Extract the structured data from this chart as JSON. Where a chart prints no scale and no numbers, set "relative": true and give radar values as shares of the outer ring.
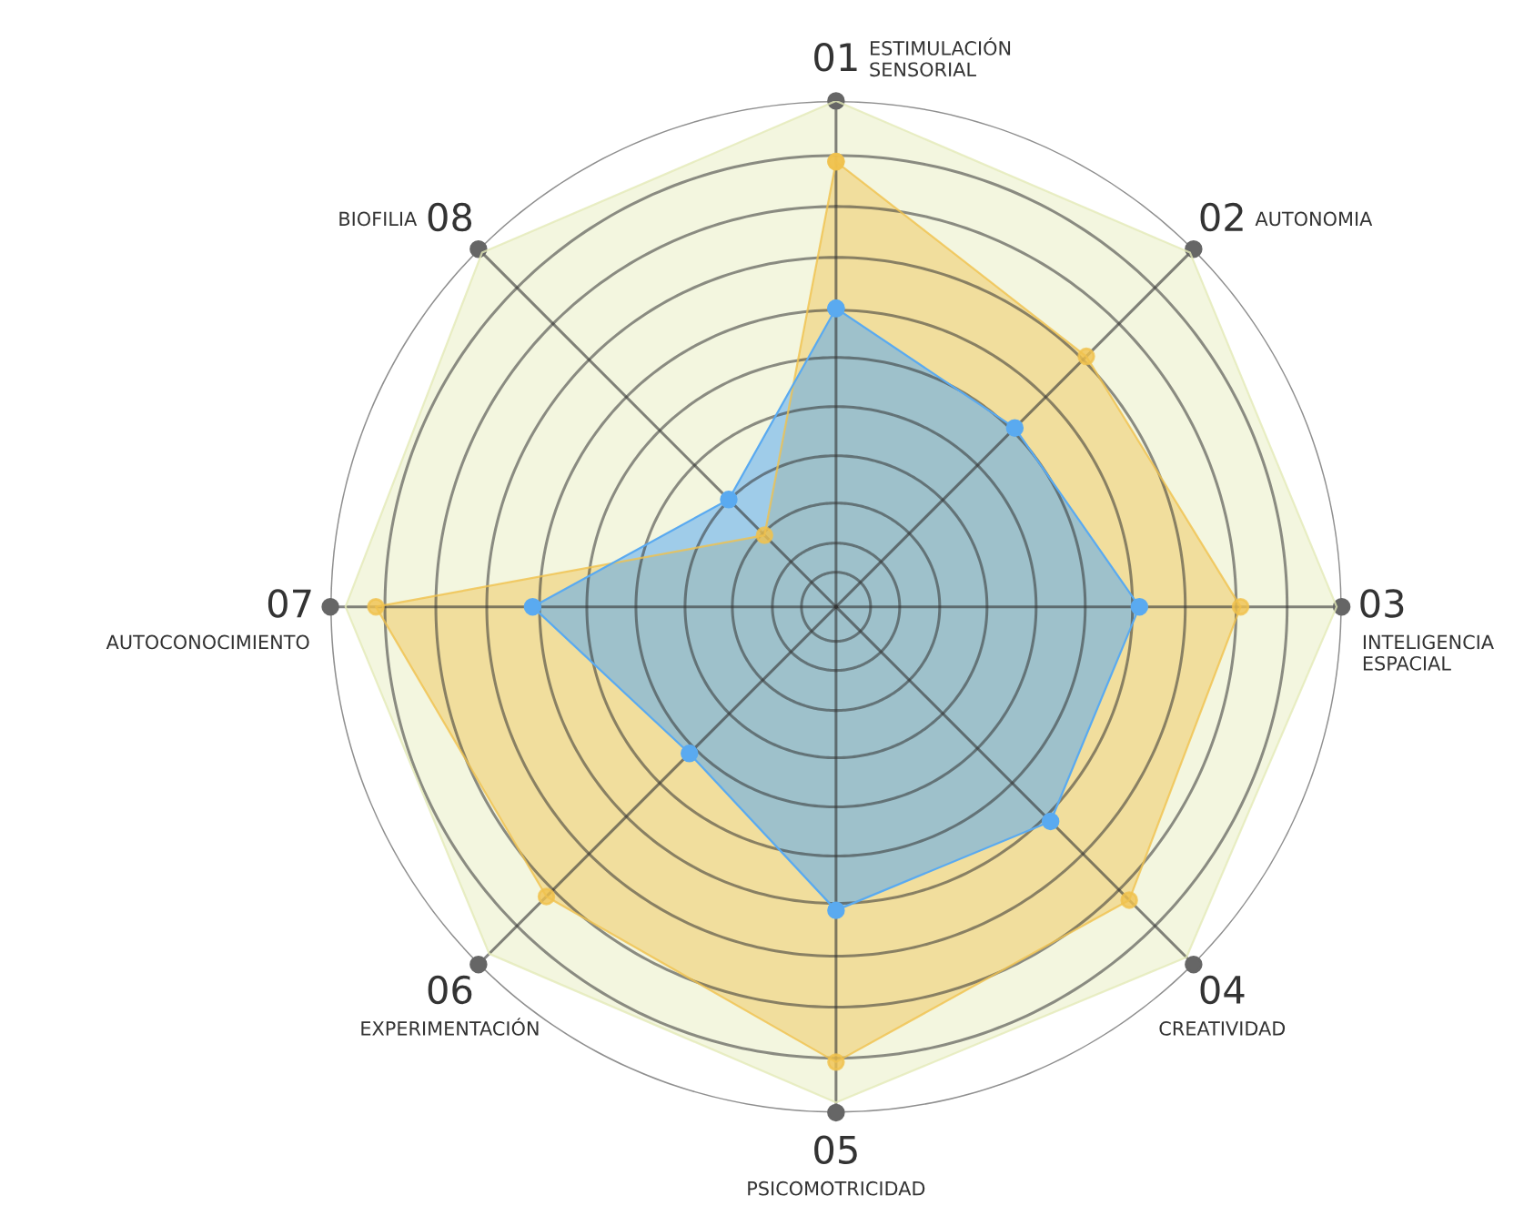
{
  "chart_data": {
    "type": "radar",
    "relative": true,
    "grid": true,
    "marker": "circle",
    "categories": [
      "01 ESTIMULACIÓN\nSENSORIAL",
      "02 AUTONOMIA",
      "03 INTELIGENCIA\nESPACIAL",
      "04 CREATIVIDAD",
      "05 PSICOMOTRICIDAD",
      "06 EXPERIMENTACIÓN",
      "07 AUTOCONOCIMIENTO",
      "BIOFILIA 08"
    ],
    "series": [
      {
        "color": "#e4eab8",
        "values": [
          1.0,
          0.99,
          0.99,
          0.98,
          0.98,
          0.97,
          0.97,
          0.99
        ]
      },
      {
        "color": "#f0c24e",
        "values": [
          0.88,
          0.7,
          0.8,
          0.82,
          0.9,
          0.81,
          0.91,
          0.2
        ]
      },
      {
        "color": "#5aaaf0",
        "values": [
          0.59,
          0.5,
          0.6,
          0.6,
          0.6,
          0.41,
          0.6,
          0.3
        ]
      }
    ]
  }
}
